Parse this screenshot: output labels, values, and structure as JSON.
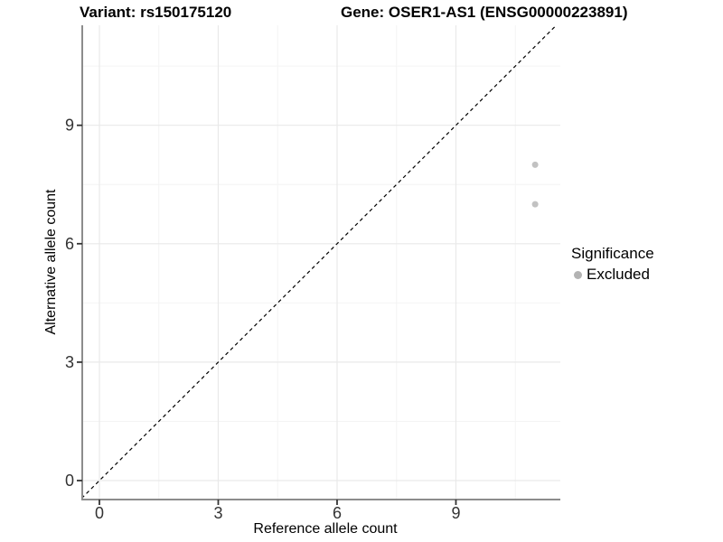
{
  "titles": {
    "variant": "Variant: rs150175120",
    "gene": "Gene: OSER1-AS1 (ENSG00000223891)"
  },
  "chart_data": {
    "type": "scatter",
    "xlabel": "Reference allele count",
    "ylabel": "Alternative allele count",
    "x_ticks": [
      0,
      3,
      6,
      9
    ],
    "y_ticks": [
      0,
      3,
      6,
      9
    ],
    "x_minor": [
      1.5,
      4.5,
      7.5,
      10.5
    ],
    "y_minor": [
      1.5,
      4.5,
      7.5,
      10.5
    ],
    "xlim": [
      -0.45,
      11.55
    ],
    "ylim": [
      -0.45,
      11.55
    ],
    "grid": true,
    "points": [
      {
        "x": 11,
        "y": 8,
        "series": "Excluded"
      },
      {
        "x": 11,
        "y": 7,
        "series": "Excluded"
      }
    ],
    "identity_line": {
      "style": "dashed",
      "from": -0.45,
      "to": 11.53
    },
    "legend": {
      "title": "Significance",
      "position": "right",
      "items": [
        {
          "label": "Excluded",
          "color": "#b3b3b3"
        }
      ]
    }
  },
  "colors": {
    "point": "#c2c2c2",
    "axis_line": "#8c8c8c",
    "tick": "#333333",
    "tick_label": "#333333",
    "grid_major": "#e9e9e9",
    "grid_minor": "#f4f4f4",
    "dashed_line": "#000000"
  }
}
